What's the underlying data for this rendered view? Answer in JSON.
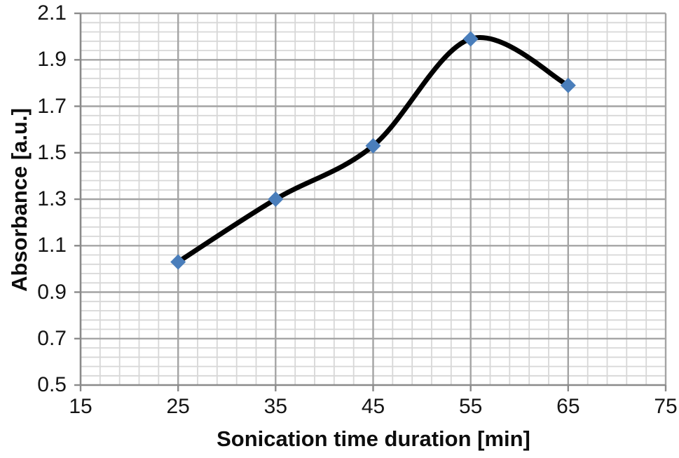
{
  "chart_data": {
    "type": "line",
    "title": "",
    "xlabel": "Sonication time duration [min]",
    "ylabel": "Absorbance [a.u.]",
    "x": [
      25,
      35,
      45,
      55,
      65
    ],
    "series": [
      {
        "name": "Absorbance",
        "values": [
          1.03,
          1.3,
          1.53,
          1.99,
          1.79
        ]
      }
    ],
    "xlim": [
      15,
      75
    ],
    "ylim": [
      0.5,
      2.1
    ],
    "x_major_unit": 10,
    "x_minor_unit": 2,
    "y_major_unit": 0.2,
    "y_minor_unit": 0.04,
    "x_tick_labels": [
      "15",
      "25",
      "35",
      "45",
      "55",
      "65",
      "75"
    ],
    "y_tick_labels": [
      "0.5",
      "0.7",
      "0.9",
      "1.1",
      "1.3",
      "1.5",
      "1.7",
      "1.9",
      "2.1"
    ],
    "grid": {
      "major": true,
      "minor": true
    },
    "legend": "none",
    "smooth_line": true,
    "style": {
      "line_color": "#000000",
      "line_width": 7,
      "marker": "diamond",
      "marker_color": "#4a7ebb",
      "marker_half_size": 11,
      "minor_grid_color": "#d7d7d7",
      "major_grid_color": "#a4a4a4",
      "axis_color": "#8a8a8a",
      "tick_length": 9,
      "background": "#ffffff",
      "text_color": "#151515"
    }
  }
}
